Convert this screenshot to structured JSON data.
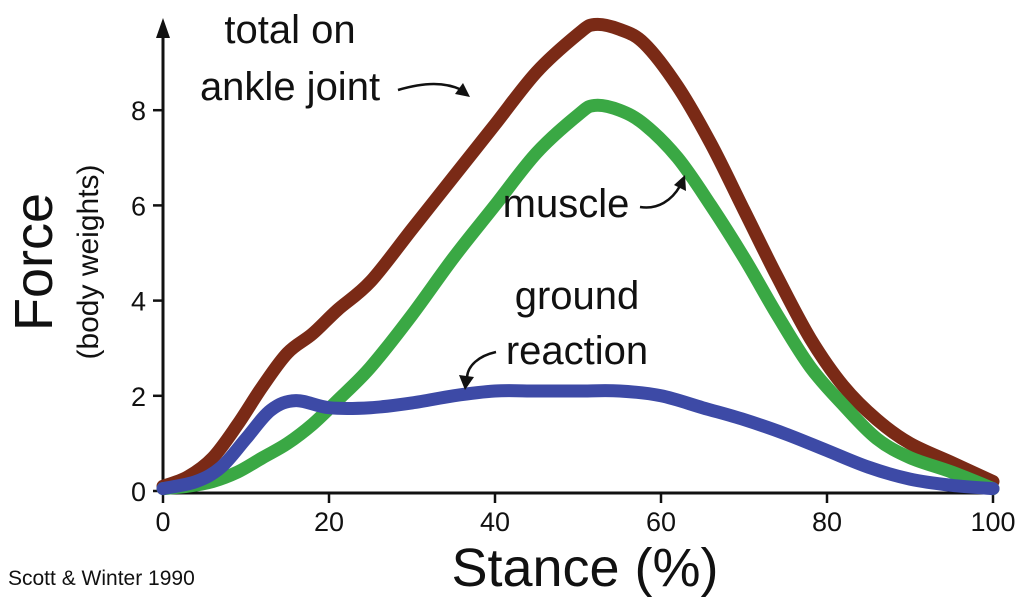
{
  "chart_data": {
    "type": "line",
    "xlabel": "Stance (%)",
    "ylabel": "Force",
    "ylabel_sub": "(body weights)",
    "xlim": [
      0,
      100
    ],
    "ylim": [
      0,
      10
    ],
    "x_ticks": [
      "0",
      "20",
      "40",
      "60",
      "80",
      "100"
    ],
    "y_ticks": [
      "0",
      "2",
      "4",
      "6",
      "8"
    ],
    "grid": false,
    "legend": "none",
    "series": [
      {
        "name": "total on ankle joint",
        "color": "#7a2a16",
        "points": [
          [
            0,
            0.1
          ],
          [
            3,
            0.3
          ],
          [
            6,
            0.7
          ],
          [
            9,
            1.4
          ],
          [
            12,
            2.2
          ],
          [
            15,
            2.9
          ],
          [
            18,
            3.3
          ],
          [
            21,
            3.8
          ],
          [
            25,
            4.4
          ],
          [
            30,
            5.5
          ],
          [
            35,
            6.6
          ],
          [
            40,
            7.7
          ],
          [
            45,
            8.8
          ],
          [
            50,
            9.6
          ],
          [
            52,
            9.8
          ],
          [
            55,
            9.7
          ],
          [
            58,
            9.4
          ],
          [
            62,
            8.5
          ],
          [
            66,
            7.3
          ],
          [
            70,
            5.9
          ],
          [
            74,
            4.5
          ],
          [
            78,
            3.2
          ],
          [
            82,
            2.2
          ],
          [
            86,
            1.5
          ],
          [
            90,
            1.0
          ],
          [
            95,
            0.6
          ],
          [
            100,
            0.2
          ]
        ]
      },
      {
        "name": "muscle",
        "color": "#3aa844",
        "points": [
          [
            0,
            0.05
          ],
          [
            3,
            0.1
          ],
          [
            6,
            0.2
          ],
          [
            9,
            0.4
          ],
          [
            12,
            0.7
          ],
          [
            15,
            1.0
          ],
          [
            18,
            1.4
          ],
          [
            21,
            1.9
          ],
          [
            25,
            2.6
          ],
          [
            30,
            3.7
          ],
          [
            35,
            4.9
          ],
          [
            40,
            6.0
          ],
          [
            45,
            7.1
          ],
          [
            50,
            7.9
          ],
          [
            52,
            8.1
          ],
          [
            55,
            8.0
          ],
          [
            58,
            7.7
          ],
          [
            62,
            7.0
          ],
          [
            66,
            6.0
          ],
          [
            70,
            4.9
          ],
          [
            74,
            3.7
          ],
          [
            78,
            2.6
          ],
          [
            82,
            1.8
          ],
          [
            86,
            1.1
          ],
          [
            90,
            0.7
          ],
          [
            95,
            0.4
          ],
          [
            100,
            0.05
          ]
        ]
      },
      {
        "name": "ground reaction",
        "color": "#3d4aa6",
        "points": [
          [
            0,
            0.05
          ],
          [
            4,
            0.2
          ],
          [
            7,
            0.5
          ],
          [
            10,
            1.1
          ],
          [
            13,
            1.7
          ],
          [
            16,
            1.9
          ],
          [
            20,
            1.75
          ],
          [
            25,
            1.75
          ],
          [
            30,
            1.85
          ],
          [
            35,
            2.0
          ],
          [
            40,
            2.1
          ],
          [
            45,
            2.1
          ],
          [
            50,
            2.1
          ],
          [
            55,
            2.1
          ],
          [
            60,
            2.0
          ],
          [
            65,
            1.75
          ],
          [
            70,
            1.5
          ],
          [
            75,
            1.2
          ],
          [
            80,
            0.85
          ],
          [
            85,
            0.5
          ],
          [
            90,
            0.25
          ],
          [
            95,
            0.12
          ],
          [
            100,
            0.05
          ]
        ]
      }
    ]
  },
  "annotations": {
    "total_line1": "total on",
    "total_line2": "ankle joint",
    "muscle": "muscle",
    "ground_line1": "ground",
    "ground_line2": "reaction"
  },
  "credit": "Scott & Winter 1990",
  "colors": {
    "axis": "#111111",
    "text": "#111111",
    "background": "#ffffff"
  }
}
